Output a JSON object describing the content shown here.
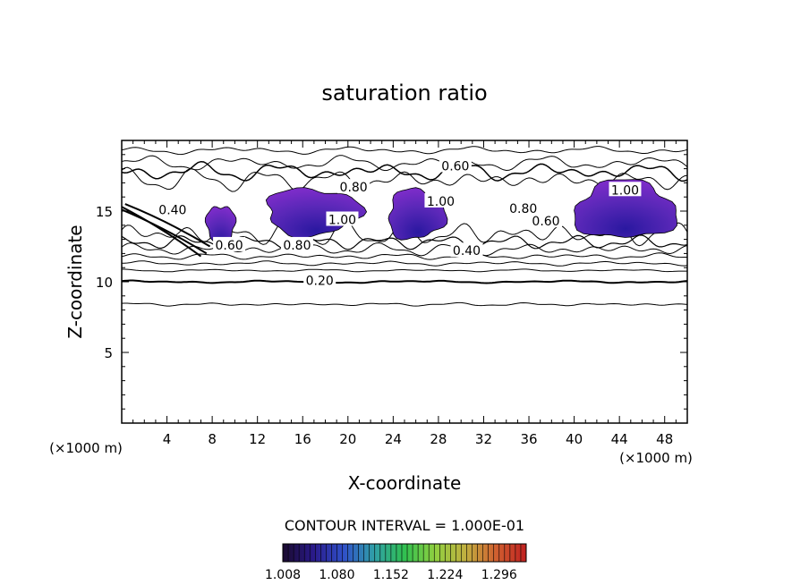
{
  "chart_data": {
    "type": "contour",
    "title": "saturation ratio",
    "xlabel": "X-coordinate",
    "ylabel": "Z-coordinate",
    "x_unit": "(×1000 m)",
    "y_unit": "(×1000 m)",
    "xlim": [
      0,
      50
    ],
    "ylim": [
      0,
      20
    ],
    "x_ticks": [
      "4",
      "8",
      "12",
      "16",
      "20",
      "24",
      "28",
      "32",
      "36",
      "40",
      "44",
      "48"
    ],
    "y_ticks": [
      "5",
      "10",
      "15"
    ],
    "contour_interval_text": "CONTOUR INTERVAL = 1.000E-01",
    "contour_labels": [
      {
        "text": "0.20",
        "x": 17.5,
        "z": 10.1
      },
      {
        "text": "0.40",
        "x": 4.5,
        "z": 15.1
      },
      {
        "text": "0.40",
        "x": 30.5,
        "z": 12.2
      },
      {
        "text": "0.60",
        "x": 29.5,
        "z": 18.2
      },
      {
        "text": "0.60",
        "x": 9.5,
        "z": 12.6
      },
      {
        "text": "0.60",
        "x": 37.5,
        "z": 14.3
      },
      {
        "text": "0.80",
        "x": 20.5,
        "z": 16.7
      },
      {
        "text": "0.80",
        "x": 15.5,
        "z": 12.6
      },
      {
        "text": "0.80",
        "x": 35.5,
        "z": 15.2
      },
      {
        "text": "1.00",
        "x": 19.5,
        "z": 14.4
      },
      {
        "text": "1.00",
        "x": 28.2,
        "z": 15.7
      },
      {
        "text": "1.00",
        "x": 44.5,
        "z": 16.5
      }
    ],
    "colorbar": {
      "tick_labels": [
        "1.008",
        "1.080",
        "1.152",
        "1.224",
        "1.296"
      ],
      "range": [
        1.008,
        1.332
      ],
      "colors": [
        "#1a0a2e",
        "#2a1a8a",
        "#3050c8",
        "#30a0a8",
        "#30c050",
        "#90d040",
        "#c0b040",
        "#d06030",
        "#c02020"
      ]
    },
    "fill_color": "#7a2cc8",
    "fill_color_dark": "#2a18a0",
    "supersaturated_regions": [
      {
        "x_range": [
          7.5,
          10
        ],
        "z_range": [
          12.5,
          15.5
        ]
      },
      {
        "x_range": [
          12.7,
          21
        ],
        "z_range": [
          13.2,
          16.7
        ]
      },
      {
        "x_range": [
          23.5,
          28.5
        ],
        "z_range": [
          12.9,
          16.6
        ]
      },
      {
        "x_range": [
          40,
          49
        ],
        "z_range": [
          12.9,
          17.2
        ]
      }
    ]
  }
}
